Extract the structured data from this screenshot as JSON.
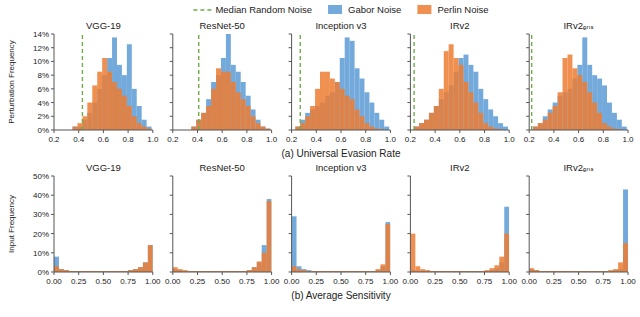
{
  "chart_data": [
    {
      "type": "histogram",
      "title": "VGG-19",
      "ylabel": "Perturbation Frequency",
      "xlabel": "(a) Universal Evasion Rate",
      "legend": "top",
      "bins": [
        0.19,
        0.23,
        0.27,
        0.31,
        0.35,
        0.39,
        0.43,
        0.47,
        0.51,
        0.55,
        0.59,
        0.63,
        0.67,
        0.71,
        0.75,
        0.79,
        0.83,
        0.87,
        0.91,
        0.95,
        0.99
      ],
      "series": [
        {
          "name": "Gabor Noise",
          "color": "#5B9BD5",
          "values": [
            0.0,
            0.0,
            0.0,
            0.0,
            0.5,
            0.5,
            1.5,
            2.5,
            4.0,
            6.0,
            8.0,
            10.5,
            13.5,
            9.5,
            8.0,
            12.5,
            6.0,
            3.5,
            1.5,
            0.5
          ]
        },
        {
          "name": "Perlin Noise",
          "color": "#ED7D31",
          "values": [
            0.0,
            0.0,
            0.0,
            0.0,
            0.5,
            1.0,
            2.0,
            4.0,
            6.5,
            8.5,
            10.5,
            8.5,
            7.0,
            6.0,
            5.0,
            3.5,
            2.0,
            1.0,
            0.5,
            0.2
          ]
        }
      ],
      "median_line": {
        "name": "Median Random Noise",
        "value": 0.43,
        "color": "#70AD47"
      },
      "xlim": [
        0.2,
        1.0
      ],
      "ylim": [
        0,
        14
      ],
      "xticks": [
        0.2,
        0.4,
        0.6,
        0.8,
        {
          "value": 1.0,
          "label": "1.0"
        }
      ],
      "yticks": [
        {
          "value": 0,
          "label": "0%"
        },
        {
          "value": 2,
          "label": "2%"
        },
        {
          "value": 4,
          "label": "4%"
        },
        {
          "value": 6,
          "label": "6%"
        },
        {
          "value": 8,
          "label": "8%"
        },
        {
          "value": 10,
          "label": "10%"
        },
        {
          "value": 12,
          "label": "12%"
        },
        {
          "value": 14,
          "label": "14%"
        }
      ]
    },
    {
      "type": "histogram",
      "title": "ResNet-50",
      "tick_labels": "x",
      "bins": [
        0.19,
        0.23,
        0.27,
        0.31,
        0.35,
        0.39,
        0.43,
        0.47,
        0.51,
        0.55,
        0.59,
        0.63,
        0.67,
        0.71,
        0.75,
        0.79,
        0.83,
        0.87,
        0.91,
        0.95,
        0.99
      ],
      "series": [
        {
          "color": "#5B9BD5",
          "values": [
            0.0,
            0.0,
            0.0,
            0.0,
            0.5,
            1.5,
            2.5,
            4.5,
            7.0,
            8.0,
            10.5,
            14.0,
            9.5,
            8.5,
            7.0,
            5.0,
            3.0,
            1.5,
            0.5,
            0.2
          ]
        },
        {
          "color": "#ED7D31",
          "values": [
            0.0,
            0.0,
            0.0,
            0.0,
            0.5,
            1.5,
            2.5,
            3.5,
            6.0,
            9.0,
            8.5,
            8.5,
            7.0,
            5.5,
            4.5,
            3.5,
            2.0,
            1.0,
            0.5,
            0.2
          ]
        }
      ],
      "median_line": {
        "value": 0.41,
        "color": "#70AD47"
      },
      "xlim": [
        0.2,
        1.0
      ],
      "ylim": [
        0,
        14
      ],
      "xticks": [
        0.2,
        0.4,
        0.6,
        0.8,
        {
          "value": 1.0,
          "label": "1.0"
        }
      ],
      "yticks": [
        0,
        2,
        4,
        6,
        8,
        10,
        12,
        14
      ]
    },
    {
      "type": "histogram",
      "title": "Inception v3",
      "tick_labels": "x",
      "bins": [
        0.19,
        0.23,
        0.27,
        0.31,
        0.35,
        0.39,
        0.43,
        0.47,
        0.51,
        0.55,
        0.59,
        0.63,
        0.67,
        0.71,
        0.75,
        0.79,
        0.83,
        0.87,
        0.91,
        0.95,
        0.99
      ],
      "series": [
        {
          "color": "#5B9BD5",
          "values": [
            0.0,
            0.5,
            1.5,
            2.5,
            3.0,
            3.5,
            4.0,
            5.0,
            5.5,
            7.0,
            10.5,
            13.5,
            13.0,
            9.0,
            7.5,
            5.5,
            4.0,
            2.5,
            1.5,
            0.5
          ]
        },
        {
          "color": "#ED7D31",
          "values": [
            0.0,
            0.5,
            1.0,
            2.0,
            3.5,
            6.0,
            8.5,
            8.5,
            7.5,
            7.0,
            6.0,
            5.0,
            4.5,
            3.0,
            2.0,
            1.0,
            0.5,
            0.2,
            0.1,
            0.0
          ]
        }
      ],
      "median_line": {
        "value": 0.27,
        "color": "#70AD47"
      },
      "xlim": [
        0.2,
        1.0
      ],
      "ylim": [
        0,
        14
      ],
      "xticks": [
        0.2,
        0.4,
        0.6,
        0.8,
        {
          "value": 1.0,
          "label": "1.0"
        }
      ],
      "yticks": [
        0,
        2,
        4,
        6,
        8,
        10,
        12,
        14
      ]
    },
    {
      "type": "histogram",
      "title": "IRv2",
      "tick_labels": "x",
      "bins": [
        0.19,
        0.23,
        0.27,
        0.31,
        0.35,
        0.39,
        0.43,
        0.47,
        0.51,
        0.55,
        0.59,
        0.63,
        0.67,
        0.71,
        0.75,
        0.79,
        0.83,
        0.87,
        0.91,
        0.95,
        0.99
      ],
      "series": [
        {
          "color": "#5B9BD5",
          "values": [
            0.0,
            0.5,
            1.0,
            1.5,
            2.5,
            3.5,
            4.5,
            5.5,
            6.5,
            8.5,
            10.5,
            11.0,
            9.5,
            8.5,
            6.0,
            4.5,
            3.0,
            2.0,
            1.0,
            0.5
          ]
        },
        {
          "color": "#ED7D31",
          "values": [
            0.0,
            0.5,
            1.0,
            1.5,
            2.5,
            3.5,
            6.0,
            11.5,
            12.5,
            10.5,
            9.5,
            7.0,
            5.5,
            4.0,
            2.5,
            1.0,
            0.5,
            0.2,
            0.1,
            0.0
          ]
        }
      ],
      "median_line": {
        "value": 0.23,
        "color": "#70AD47"
      },
      "xlim": [
        0.2,
        1.0
      ],
      "ylim": [
        0,
        14
      ],
      "xticks": [
        0.2,
        0.4,
        0.6,
        0.8,
        {
          "value": 1.0,
          "label": "1.0"
        }
      ],
      "yticks": [
        0,
        2,
        4,
        6,
        8,
        10,
        12,
        14
      ]
    },
    {
      "type": "histogram",
      "title": "IRv2ₑₙₛ",
      "tick_labels": "x",
      "bins": [
        0.19,
        0.23,
        0.27,
        0.31,
        0.35,
        0.39,
        0.43,
        0.47,
        0.51,
        0.55,
        0.59,
        0.63,
        0.67,
        0.71,
        0.75,
        0.79,
        0.83,
        0.87,
        0.91,
        0.95,
        0.99
      ],
      "series": [
        {
          "color": "#5B9BD5",
          "values": [
            0.0,
            0.5,
            1.0,
            2.0,
            3.0,
            4.0,
            5.0,
            5.5,
            6.0,
            7.5,
            9.5,
            13.5,
            9.5,
            8.0,
            7.5,
            6.5,
            4.0,
            2.5,
            1.5,
            0.5
          ]
        },
        {
          "color": "#ED7D31",
          "values": [
            0.0,
            0.5,
            1.0,
            1.5,
            2.5,
            3.5,
            5.5,
            10.5,
            11.0,
            9.0,
            8.0,
            7.0,
            5.5,
            4.0,
            2.5,
            1.0,
            0.5,
            0.2,
            0.1,
            0.0
          ]
        }
      ],
      "median_line": {
        "value": 0.22,
        "color": "#70AD47"
      },
      "xlim": [
        0.2,
        1.0
      ],
      "ylim": [
        0,
        14
      ],
      "xticks": [
        0.2,
        0.4,
        0.6,
        0.8,
        {
          "value": 1.0,
          "label": "1.0"
        }
      ],
      "yticks": [
        0,
        2,
        4,
        6,
        8,
        10,
        12,
        14
      ]
    },
    {
      "type": "histogram",
      "title": "VGG-19",
      "ylabel": "Input Frequency",
      "xlabel": "(b) Average Sensitivity",
      "bins": [
        0.0,
        0.05,
        0.1,
        0.15,
        0.2,
        0.25,
        0.3,
        0.35,
        0.4,
        0.45,
        0.5,
        0.55,
        0.6,
        0.65,
        0.7,
        0.75,
        0.8,
        0.85,
        0.9,
        0.95,
        1.0
      ],
      "series": [
        {
          "color": "#5B9BD5",
          "values": [
            8.0,
            1.5,
            1.0,
            0.5,
            0.5,
            0.5,
            0.5,
            0.5,
            0.5,
            0.5,
            0.5,
            0.5,
            0.5,
            0.5,
            0.5,
            1.0,
            1.5,
            2.5,
            5.0,
            14.0
          ]
        },
        {
          "color": "#ED7D31",
          "values": [
            3.0,
            1.5,
            1.0,
            0.5,
            0.5,
            0.5,
            0.5,
            0.5,
            0.5,
            0.5,
            0.5,
            0.5,
            0.5,
            0.5,
            0.5,
            1.0,
            1.5,
            2.5,
            5.0,
            14.0
          ]
        }
      ],
      "xlim": [
        0.0,
        1.0
      ],
      "ylim": [
        0,
        50
      ],
      "xticks": [
        {
          "value": 0.0,
          "label": "0.00"
        },
        {
          "value": 0.25,
          "label": "0.25"
        },
        {
          "value": 0.5,
          "label": "0.50"
        },
        {
          "value": 0.75,
          "label": "0.75"
        },
        {
          "value": 1.0,
          "label": "1.00"
        }
      ],
      "yticks": [
        {
          "value": 0,
          "label": "0%"
        },
        {
          "value": 10,
          "label": "10%"
        },
        {
          "value": 20,
          "label": "20%"
        },
        {
          "value": 30,
          "label": "30%"
        },
        {
          "value": 40,
          "label": "40%"
        },
        {
          "value": 50,
          "label": "50%"
        }
      ]
    },
    {
      "type": "histogram",
      "title": "ResNet-50",
      "tick_labels": "x",
      "bins": [
        0.0,
        0.05,
        0.1,
        0.15,
        0.2,
        0.25,
        0.3,
        0.35,
        0.4,
        0.45,
        0.5,
        0.55,
        0.6,
        0.65,
        0.7,
        0.75,
        0.8,
        0.85,
        0.9,
        0.95,
        1.0
      ],
      "series": [
        {
          "color": "#5B9BD5",
          "values": [
            1.5,
            1.0,
            0.5,
            0.5,
            0.5,
            0.5,
            0.5,
            0.5,
            0.5,
            0.5,
            0.5,
            0.5,
            0.5,
            0.5,
            0.5,
            1.0,
            2.5,
            5.0,
            14.0,
            38.0
          ]
        },
        {
          "color": "#ED7D31",
          "values": [
            2.5,
            1.5,
            1.0,
            0.5,
            0.5,
            0.5,
            0.5,
            0.5,
            0.5,
            0.5,
            0.5,
            0.5,
            0.5,
            0.5,
            0.5,
            1.0,
            2.5,
            5.5,
            10.0,
            37.0
          ]
        }
      ],
      "xlim": [
        0.0,
        1.0
      ],
      "ylim": [
        0,
        50
      ],
      "xticks": [
        {
          "value": 0.0,
          "label": "0.00"
        },
        {
          "value": 0.25,
          "label": "0.25"
        },
        {
          "value": 0.5,
          "label": "0.50"
        },
        {
          "value": 0.75,
          "label": "0.75"
        },
        {
          "value": 1.0,
          "label": "1.00"
        }
      ],
      "yticks": [
        0,
        10,
        20,
        30,
        40,
        50
      ]
    },
    {
      "type": "histogram",
      "title": "Inception v3",
      "tick_labels": "x",
      "bins": [
        0.0,
        0.05,
        0.1,
        0.15,
        0.2,
        0.25,
        0.3,
        0.35,
        0.4,
        0.45,
        0.5,
        0.55,
        0.6,
        0.65,
        0.7,
        0.75,
        0.8,
        0.85,
        0.9,
        0.95,
        1.0
      ],
      "series": [
        {
          "color": "#5B9BD5",
          "values": [
            29.0,
            3.0,
            1.5,
            1.0,
            0.5,
            0.5,
            0.5,
            0.5,
            0.5,
            0.5,
            0.5,
            0.5,
            0.5,
            0.5,
            0.5,
            0.5,
            0.5,
            1.0,
            3.0,
            26.0
          ]
        },
        {
          "color": "#ED7D31",
          "values": [
            3.0,
            1.5,
            1.0,
            0.5,
            0.5,
            0.5,
            0.5,
            0.5,
            0.5,
            0.5,
            0.5,
            0.5,
            0.5,
            0.5,
            0.5,
            0.5,
            0.5,
            1.5,
            4.0,
            25.0
          ]
        }
      ],
      "xlim": [
        0.0,
        1.0
      ],
      "ylim": [
        0,
        50
      ],
      "xticks": [
        {
          "value": 0.0,
          "label": "0.00"
        },
        {
          "value": 0.25,
          "label": "0.25"
        },
        {
          "value": 0.5,
          "label": "0.50"
        },
        {
          "value": 0.75,
          "label": "0.75"
        },
        {
          "value": 1.0,
          "label": "1.00"
        }
      ],
      "yticks": [
        0,
        10,
        20,
        30,
        40,
        50
      ]
    },
    {
      "type": "histogram",
      "title": "IRv2",
      "tick_labels": "x",
      "bins": [
        0.0,
        0.05,
        0.1,
        0.15,
        0.2,
        0.25,
        0.3,
        0.35,
        0.4,
        0.45,
        0.5,
        0.55,
        0.6,
        0.65,
        0.7,
        0.75,
        0.8,
        0.85,
        0.9,
        0.95,
        1.0
      ],
      "series": [
        {
          "color": "#5B9BD5",
          "values": [
            1.0,
            0.5,
            0.5,
            0.5,
            0.5,
            0.5,
            0.5,
            0.5,
            0.5,
            0.5,
            0.5,
            0.5,
            0.5,
            0.5,
            0.5,
            0.5,
            1.0,
            2.0,
            5.0,
            34.0
          ]
        },
        {
          "color": "#ED7D31",
          "values": [
            20.0,
            3.0,
            1.5,
            1.0,
            0.5,
            0.5,
            0.5,
            0.5,
            0.5,
            0.5,
            0.5,
            0.5,
            0.5,
            0.5,
            0.5,
            1.0,
            2.0,
            3.5,
            8.0,
            20.0
          ]
        }
      ],
      "xlim": [
        0.0,
        1.0
      ],
      "ylim": [
        0,
        50
      ],
      "xticks": [
        {
          "value": 0.0,
          "label": "0.00"
        },
        {
          "value": 0.25,
          "label": "0.25"
        },
        {
          "value": 0.5,
          "label": "0.50"
        },
        {
          "value": 0.75,
          "label": "0.75"
        },
        {
          "value": 1.0,
          "label": "1.00"
        }
      ],
      "yticks": [
        0,
        10,
        20,
        30,
        40,
        50
      ]
    },
    {
      "type": "histogram",
      "title": "IRv2ₑₙₛ",
      "tick_labels": "x",
      "bins": [
        0.0,
        0.05,
        0.1,
        0.15,
        0.2,
        0.25,
        0.3,
        0.35,
        0.4,
        0.45,
        0.5,
        0.55,
        0.6,
        0.65,
        0.7,
        0.75,
        0.8,
        0.85,
        0.9,
        0.95,
        1.0
      ],
      "series": [
        {
          "color": "#5B9BD5",
          "values": [
            1.5,
            1.0,
            0.5,
            0.5,
            0.5,
            0.5,
            0.5,
            0.5,
            0.5,
            0.5,
            0.5,
            0.5,
            0.5,
            0.5,
            0.5,
            0.5,
            0.5,
            1.0,
            1.5,
            43.0
          ]
        },
        {
          "color": "#ED7D31",
          "values": [
            2.0,
            1.0,
            0.5,
            0.5,
            0.5,
            0.5,
            0.5,
            0.5,
            0.5,
            0.5,
            0.5,
            0.5,
            0.5,
            0.5,
            0.5,
            0.5,
            1.0,
            1.5,
            5.0,
            15.0
          ]
        }
      ],
      "xlim": [
        0.0,
        1.0
      ],
      "ylim": [
        0,
        50
      ],
      "xticks": [
        {
          "value": 0.0,
          "label": "0.00"
        },
        {
          "value": 0.25,
          "label": "0.25"
        },
        {
          "value": 0.5,
          "label": "0.50"
        },
        {
          "value": 0.75,
          "label": "0.75"
        },
        {
          "value": 1.0,
          "label": "1.00"
        }
      ],
      "yticks": [
        0,
        10,
        20,
        30,
        40,
        50
      ]
    }
  ]
}
